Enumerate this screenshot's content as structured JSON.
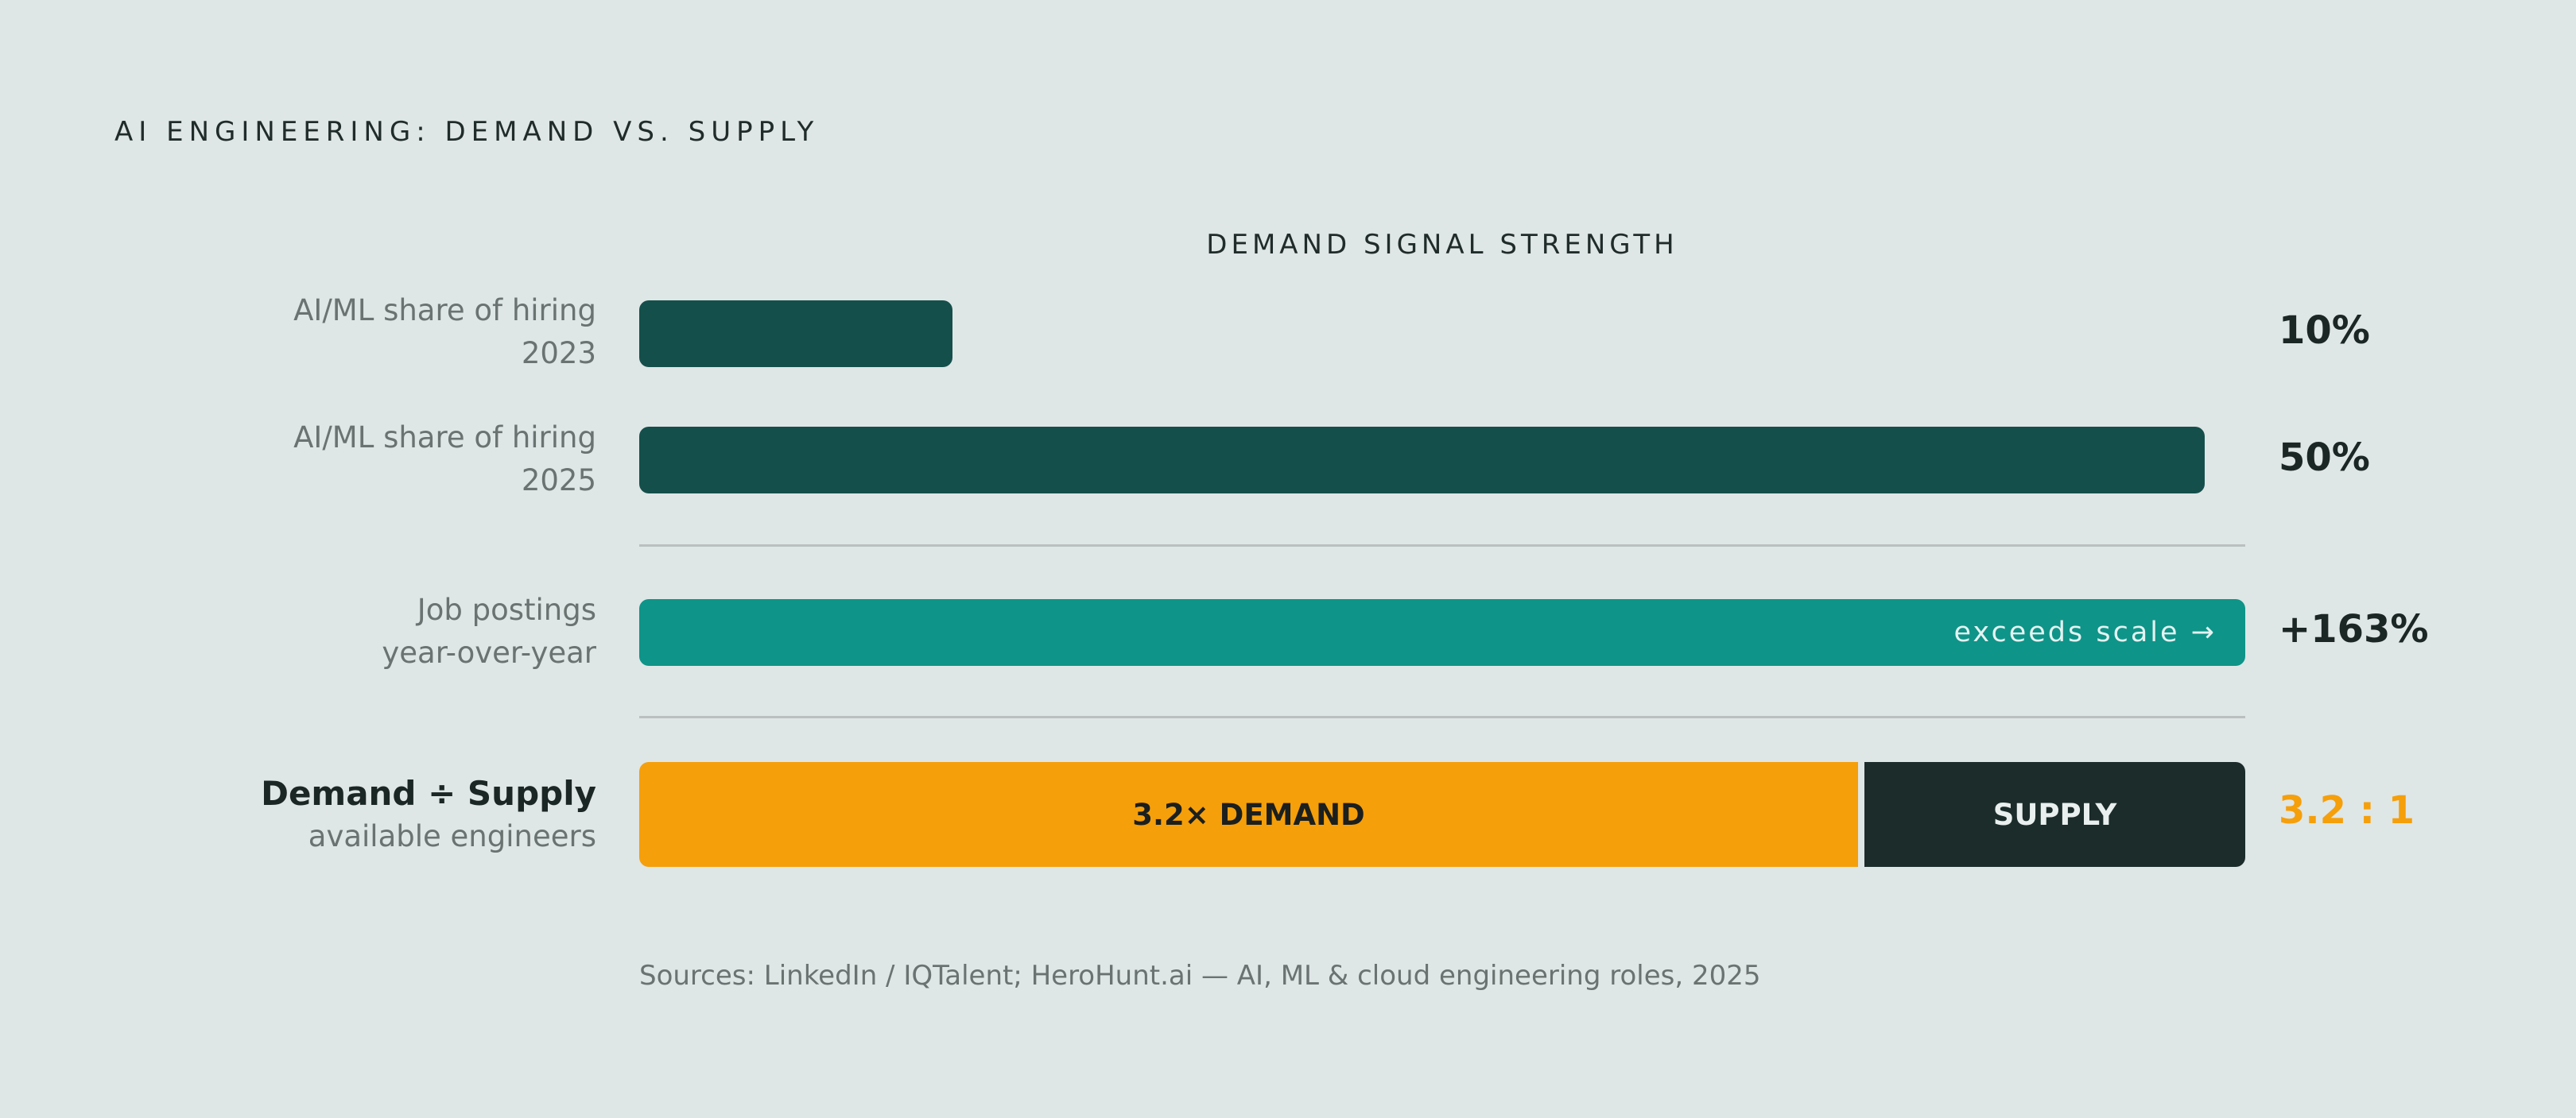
{
  "title": "AI ENGINEERING: DEMAND VS. SUPPLY",
  "colors": {
    "background": "#dfe6e6",
    "dark_bar": "#154f4b",
    "teal_bar": "#0e9488",
    "demand": "#f59f0b",
    "supply": "#1b2c2a"
  },
  "chart_data": {
    "type": "bar",
    "orientation": "horizontal",
    "axis_title": "DEMAND SIGNAL STRENGTH",
    "xlim": [
      0,
      51.3
    ],
    "rows": [
      {
        "label_lines": [
          "AI/ML share of hiring",
          "2023"
        ],
        "value": 10,
        "value_label": "10%"
      },
      {
        "label_lines": [
          "AI/ML share of hiring",
          "2025"
        ],
        "value": 50,
        "value_label": "50%"
      },
      {
        "label_lines": [
          "Job postings",
          "year-over-year"
        ],
        "value": 163,
        "value_label": "+163%",
        "bar_note": "exceeds scale →"
      }
    ],
    "ratio": {
      "label_lines": [
        "Demand ÷ Supply",
        "available engineers"
      ],
      "demand": 3.2,
      "supply": 1,
      "demand_label": "3.2× DEMAND",
      "supply_label": "SUPPLY",
      "value_label": "3.2 : 1"
    }
  },
  "sources": "Sources: LinkedIn / IQTalent; HeroHunt.ai — AI, ML & cloud engineering roles, 2025"
}
